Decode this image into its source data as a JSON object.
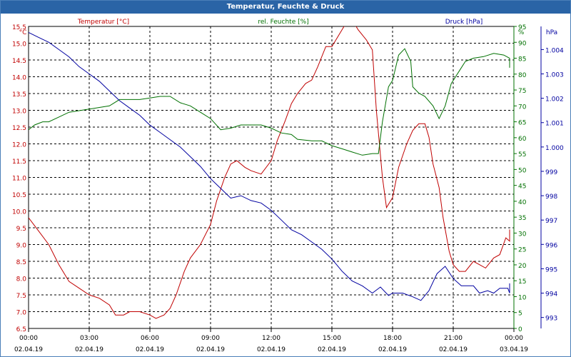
{
  "window": {
    "title": "Temperatur, Feuchte & Druck"
  },
  "chart_data": {
    "type": "line",
    "title": "Temperatur, Feuchte & Druck",
    "grid": true,
    "x_axis": {
      "ticks": [
        {
          "hours": 0,
          "time": "00:00",
          "date": "02.04.19"
        },
        {
          "hours": 3,
          "time": "03:00",
          "date": "02.04.19"
        },
        {
          "hours": 6,
          "time": "06:00",
          "date": "02.04.19"
        },
        {
          "hours": 9,
          "time": "09:00",
          "date": "02.04.19"
        },
        {
          "hours": 12,
          "time": "12:00",
          "date": "02.04.19"
        },
        {
          "hours": 15,
          "time": "15:00",
          "date": "02.04.19"
        },
        {
          "hours": 18,
          "time": "18:00",
          "date": "02.04.19"
        },
        {
          "hours": 21,
          "time": "21:00",
          "date": "02.04.19"
        },
        {
          "hours": 24,
          "time": "00:00",
          "date": "03.04.19"
        }
      ],
      "range": [
        0,
        24
      ]
    },
    "axes": {
      "temperature": {
        "label": "Temperatur [°C]",
        "unit": "°C",
        "color": "#c00000",
        "range": [
          6.5,
          15.5
        ],
        "ticks": [
          "6.5",
          "7.0",
          "7.5",
          "8.0",
          "8.5",
          "9.0",
          "9.5",
          "10.0",
          "10.5",
          "11.0",
          "11.5",
          "12.0",
          "12.5",
          "13.0",
          "13.5",
          "14.0",
          "14.5",
          "15.0",
          "15.5"
        ]
      },
      "humidity": {
        "label": "rel. Feuchte [%]",
        "unit": "%",
        "color": "#007000",
        "range": [
          0,
          95
        ],
        "ticks": [
          "0",
          "5",
          "10",
          "15",
          "20",
          "25",
          "30",
          "35",
          "40",
          "45",
          "50",
          "55",
          "60",
          "65",
          "70",
          "75",
          "80",
          "85",
          "90",
          "95"
        ]
      },
      "pressure": {
        "label": "Druck [hPa]",
        "unit": "hPa",
        "color": "#0000a0",
        "range": [
          992.55,
          1004.95
        ],
        "ticks": [
          "993",
          "994",
          "995",
          "996",
          "997",
          "998",
          "999",
          "1.000",
          "1.001",
          "1.002",
          "1.003",
          "1.004"
        ]
      }
    },
    "series": [
      {
        "name": "Temperatur [°C]",
        "axis": "temperature",
        "color": "#c00000",
        "points": [
          [
            0,
            9.8
          ],
          [
            0.5,
            9.4
          ],
          [
            1,
            9.0
          ],
          [
            1.5,
            8.4
          ],
          [
            2,
            7.9
          ],
          [
            2.5,
            7.7
          ],
          [
            3,
            7.5
          ],
          [
            3.5,
            7.4
          ],
          [
            4,
            7.2
          ],
          [
            4.3,
            6.9
          ],
          [
            4.7,
            6.9
          ],
          [
            5,
            7.0
          ],
          [
            5.5,
            7.0
          ],
          [
            6,
            6.9
          ],
          [
            6.3,
            6.8
          ],
          [
            6.7,
            6.9
          ],
          [
            7,
            7.1
          ],
          [
            7.3,
            7.5
          ],
          [
            7.7,
            8.2
          ],
          [
            8,
            8.6
          ],
          [
            8.5,
            9.0
          ],
          [
            9,
            9.6
          ],
          [
            9.3,
            10.3
          ],
          [
            9.7,
            11.0
          ],
          [
            10,
            11.4
          ],
          [
            10.3,
            11.5
          ],
          [
            10.7,
            11.3
          ],
          [
            11,
            11.2
          ],
          [
            11.5,
            11.1
          ],
          [
            12,
            11.5
          ],
          [
            12.3,
            12.1
          ],
          [
            12.7,
            12.7
          ],
          [
            13,
            13.2
          ],
          [
            13.3,
            13.5
          ],
          [
            13.7,
            13.8
          ],
          [
            14,
            13.9
          ],
          [
            14.3,
            14.3
          ],
          [
            14.7,
            14.9
          ],
          [
            15,
            14.9
          ],
          [
            15.3,
            15.2
          ],
          [
            15.6,
            15.5
          ],
          [
            16,
            15.7
          ],
          [
            16.3,
            15.4
          ],
          [
            16.7,
            15.1
          ],
          [
            17,
            14.8
          ],
          [
            17.2,
            13.0
          ],
          [
            17.5,
            11.0
          ],
          [
            17.7,
            10.1
          ],
          [
            18,
            10.4
          ],
          [
            18.3,
            11.3
          ],
          [
            18.7,
            12.0
          ],
          [
            19,
            12.4
          ],
          [
            19.3,
            12.6
          ],
          [
            19.6,
            12.6
          ],
          [
            19.8,
            12.2
          ],
          [
            20,
            11.4
          ],
          [
            20.3,
            10.7
          ],
          [
            20.5,
            9.8
          ],
          [
            20.8,
            8.8
          ],
          [
            21,
            8.4
          ],
          [
            21.3,
            8.2
          ],
          [
            21.6,
            8.2
          ],
          [
            22,
            8.5
          ],
          [
            22.3,
            8.4
          ],
          [
            22.6,
            8.3
          ],
          [
            23,
            8.6
          ],
          [
            23.3,
            8.7
          ],
          [
            23.6,
            9.2
          ],
          [
            24,
            9.1
          ],
          [
            24.5,
            9.3
          ],
          [
            25,
            9.45
          ]
        ]
      },
      {
        "name": "rel. Feuchte [%]",
        "axis": "humidity",
        "color": "#007000",
        "points": [
          [
            0,
            62.5
          ],
          [
            0.3,
            64
          ],
          [
            0.7,
            65
          ],
          [
            1,
            65
          ],
          [
            1.5,
            66.5
          ],
          [
            2,
            68
          ],
          [
            2.5,
            68.5
          ],
          [
            3,
            69
          ],
          [
            3.5,
            69.5
          ],
          [
            4,
            70
          ],
          [
            4.5,
            72
          ],
          [
            5,
            72
          ],
          [
            5.5,
            72
          ],
          [
            6,
            72.5
          ],
          [
            6.5,
            73
          ],
          [
            7,
            73
          ],
          [
            7.5,
            71
          ],
          [
            8,
            70
          ],
          [
            8.5,
            68
          ],
          [
            9,
            66
          ],
          [
            9.5,
            62.5
          ],
          [
            10,
            63
          ],
          [
            10.5,
            64
          ],
          [
            11,
            64
          ],
          [
            11.5,
            64
          ],
          [
            12,
            63
          ],
          [
            12.5,
            61.5
          ],
          [
            13,
            61
          ],
          [
            13.3,
            59.5
          ],
          [
            14,
            59
          ],
          [
            14.5,
            59
          ],
          [
            15,
            57.5
          ],
          [
            15.5,
            56.5
          ],
          [
            16,
            55.5
          ],
          [
            16.5,
            54.5
          ],
          [
            17,
            55
          ],
          [
            17.3,
            55
          ],
          [
            17.5,
            65
          ],
          [
            17.8,
            76
          ],
          [
            18,
            78
          ],
          [
            18.3,
            86
          ],
          [
            18.6,
            88
          ],
          [
            18.9,
            84
          ],
          [
            19,
            76
          ],
          [
            19.3,
            74
          ],
          [
            19.6,
            73
          ],
          [
            20,
            70
          ],
          [
            20.3,
            66
          ],
          [
            20.6,
            70
          ],
          [
            20.9,
            77
          ],
          [
            21.3,
            81
          ],
          [
            21.6,
            84
          ],
          [
            22,
            85
          ],
          [
            22.5,
            85.5
          ],
          [
            23,
            86.5
          ],
          [
            23.5,
            86
          ],
          [
            24,
            85
          ],
          [
            24.5,
            83
          ],
          [
            24.8,
            82
          ],
          [
            25,
            82
          ]
        ]
      },
      {
        "name": "Druck [hPa]",
        "axis": "pressure",
        "color": "#0000a0",
        "points": [
          [
            0,
            1004.7
          ],
          [
            0.5,
            1004.5
          ],
          [
            1,
            1004.3
          ],
          [
            1.5,
            1004.0
          ],
          [
            2,
            1003.7
          ],
          [
            2.5,
            1003.3
          ],
          [
            3,
            1003.0
          ],
          [
            3.5,
            1002.7
          ],
          [
            4,
            1002.3
          ],
          [
            4.5,
            1001.9
          ],
          [
            5,
            1001.6
          ],
          [
            5.5,
            1001.3
          ],
          [
            6,
            1000.9
          ],
          [
            6.5,
            1000.6
          ],
          [
            7,
            1000.3
          ],
          [
            7.5,
            1000.0
          ],
          [
            8,
            999.6
          ],
          [
            8.5,
            999.2
          ],
          [
            9,
            998.7
          ],
          [
            9.5,
            998.3
          ],
          [
            10,
            997.9
          ],
          [
            10.5,
            998.0
          ],
          [
            11,
            997.8
          ],
          [
            11.5,
            997.7
          ],
          [
            12,
            997.4
          ],
          [
            12.5,
            997.0
          ],
          [
            13,
            996.6
          ],
          [
            13.5,
            996.4
          ],
          [
            14,
            996.1
          ],
          [
            14.5,
            995.8
          ],
          [
            15,
            995.4
          ],
          [
            15.5,
            994.9
          ],
          [
            16,
            994.5
          ],
          [
            16.5,
            994.3
          ],
          [
            17,
            994.0
          ],
          [
            17.4,
            994.25
          ],
          [
            17.8,
            993.9
          ],
          [
            18,
            994.0
          ],
          [
            18.5,
            994.0
          ],
          [
            19,
            993.85
          ],
          [
            19.4,
            993.7
          ],
          [
            19.8,
            994.1
          ],
          [
            20.2,
            994.8
          ],
          [
            20.6,
            995.1
          ],
          [
            21,
            994.6
          ],
          [
            21.4,
            994.3
          ],
          [
            21.8,
            994.3
          ],
          [
            22,
            994.3
          ],
          [
            22.3,
            994.0
          ],
          [
            22.7,
            994.1
          ],
          [
            23,
            994.0
          ],
          [
            23.3,
            994.2
          ],
          [
            23.7,
            994.2
          ],
          [
            24,
            994.0
          ],
          [
            24.3,
            994.3
          ],
          [
            24.7,
            994.3
          ],
          [
            25,
            994.4
          ]
        ]
      }
    ]
  }
}
